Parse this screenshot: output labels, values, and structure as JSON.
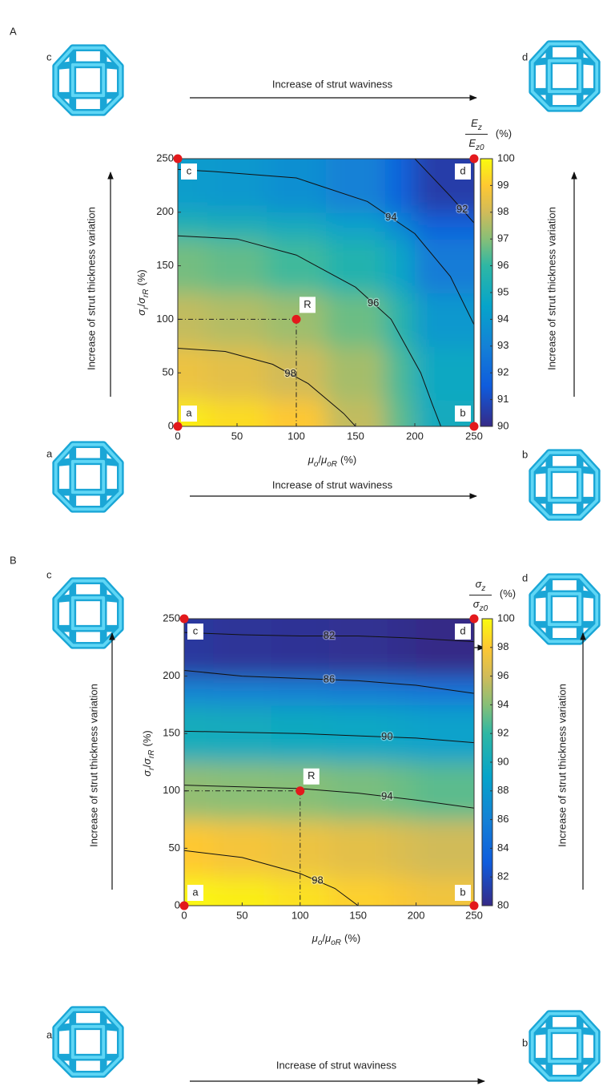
{
  "chart_data": [
    {
      "type": "contour",
      "panel_label": "A",
      "colormap": "parula",
      "lattice_labels": [
        "c",
        "d",
        "a",
        "b"
      ],
      "arrow_texts": [
        "Increase of strut waviness",
        "Increase of strut waviness",
        "Increase of strut thickness variation",
        "Increase of strut thickness variation"
      ],
      "xlabel": {
        "num": "μ",
        "num_sub": "o",
        "sep": "/",
        "den": "μ",
        "den_sub": "oR",
        "unit": "(%)"
      },
      "ylabel": {
        "num": "σ",
        "num_sub": "r",
        "sep": "/",
        "den": "σ",
        "den_sub": "rR",
        "unit": "(%)"
      },
      "colorbar_label": {
        "num": "E",
        "num_sub": "z",
        "den": "E",
        "den_sub": "z0",
        "unit": "(%)"
      },
      "xlim": [
        0,
        250
      ],
      "ylim": [
        0,
        250
      ],
      "xticks": [
        0,
        50,
        100,
        150,
        200,
        250
      ],
      "yticks": [
        0,
        50,
        100,
        150,
        200,
        250
      ],
      "clim": [
        90,
        100
      ],
      "cticks": [
        90,
        91,
        92,
        93,
        94,
        95,
        96,
        97,
        98,
        99,
        100
      ],
      "grid_x": [
        0,
        50,
        100,
        150,
        200,
        250
      ],
      "grid_y": [
        0,
        50,
        100,
        150,
        200,
        250
      ],
      "z": [
        [
          99.7,
          99.4,
          99.0,
          97.8,
          96.5,
          95.0
        ],
        [
          98.6,
          98.4,
          98.0,
          97.4,
          96.3,
          94.8
        ],
        [
          97.8,
          97.6,
          97.3,
          96.7,
          95.7,
          94.0
        ],
        [
          96.8,
          96.6,
          96.2,
          95.6,
          94.6,
          92.8
        ],
        [
          95.5,
          95.3,
          95.0,
          94.4,
          93.3,
          91.8
        ],
        [
          94.2,
          94.0,
          93.6,
          93.0,
          91.8,
          90.6
        ]
      ],
      "contours": [
        {
          "level": 98,
          "x": [
            0,
            40,
            80,
            110,
            140,
            150
          ],
          "y": [
            73,
            70,
            58,
            40,
            12,
            0
          ]
        },
        {
          "level": 96,
          "x": [
            0,
            50,
            100,
            150,
            180,
            205,
            215,
            222
          ],
          "y": [
            178,
            175,
            160,
            130,
            100,
            50,
            20,
            0
          ]
        },
        {
          "level": 94,
          "x": [
            0,
            30,
            100,
            160,
            200,
            230,
            250
          ],
          "y": [
            240,
            238,
            232,
            210,
            180,
            140,
            95
          ]
        },
        {
          "level": 92,
          "x": [
            200,
            230,
            250
          ],
          "y": [
            250,
            215,
            190
          ]
        }
      ],
      "points": {
        "labels": [
          "a",
          "b",
          "c",
          "d",
          "R"
        ],
        "x": [
          0,
          250,
          0,
          250,
          100
        ],
        "y": [
          0,
          0,
          250,
          250,
          100
        ]
      }
    },
    {
      "type": "contour",
      "panel_label": "B",
      "colormap": "parula",
      "lattice_labels": [
        "c",
        "d",
        "a",
        "b"
      ],
      "arrow_texts": [
        "Increase of strut waviness",
        "Increase of strut waviness",
        "Increase of strut thickness variation",
        "Increase of strut thickness variation"
      ],
      "xlabel": {
        "num": "μ",
        "num_sub": "o",
        "sep": "/",
        "den": "μ",
        "den_sub": "oR",
        "unit": "(%)"
      },
      "ylabel": {
        "num": "σ",
        "num_sub": "r",
        "sep": "/",
        "den": "σ",
        "den_sub": "rR",
        "unit": "(%)"
      },
      "colorbar_label": {
        "num": "σ",
        "num_sub": "z",
        "den": "σ",
        "den_sub": "z0",
        "unit": "(%)"
      },
      "xlim": [
        0,
        250
      ],
      "ylim": [
        0,
        250
      ],
      "xticks": [
        0,
        50,
        100,
        150,
        200,
        250
      ],
      "yticks": [
        0,
        50,
        100,
        150,
        200,
        250
      ],
      "clim": [
        80,
        100
      ],
      "cticks": [
        80,
        82,
        84,
        86,
        88,
        90,
        92,
        94,
        96,
        98,
        100
      ],
      "grid_x": [
        0,
        50,
        100,
        150,
        200,
        250
      ],
      "grid_y": [
        0,
        50,
        100,
        150,
        200,
        250
      ],
      "z": [
        [
          99.8,
          99.5,
          99.0,
          98.3,
          97.8,
          97.4
        ],
        [
          98.0,
          97.6,
          97.2,
          96.8,
          96.4,
          96.0
        ],
        [
          94.3,
          94.1,
          94.0,
          93.7,
          93.4,
          93.0
        ],
        [
          90.2,
          90.0,
          89.8,
          89.5,
          89.2,
          88.8
        ],
        [
          86.3,
          86.1,
          85.9,
          85.6,
          85.3,
          84.9
        ],
        [
          80.8,
          80.6,
          80.5,
          80.4,
          80.2,
          80.0
        ]
      ],
      "contours": [
        {
          "level": 98,
          "x": [
            0,
            50,
            100,
            130,
            150
          ],
          "y": [
            48,
            42,
            28,
            15,
            0
          ]
        },
        {
          "level": 94,
          "x": [
            0,
            100,
            150,
            200,
            250
          ],
          "y": [
            105,
            102,
            98,
            92,
            85
          ]
        },
        {
          "level": 90,
          "x": [
            0,
            100,
            150,
            200,
            250
          ],
          "y": [
            152,
            150,
            148,
            146,
            142
          ]
        },
        {
          "level": 86,
          "x": [
            0,
            50,
            100,
            150,
            200,
            250
          ],
          "y": [
            205,
            200,
            198,
            196,
            192,
            185
          ]
        },
        {
          "level": 82,
          "x": [
            0,
            50,
            100,
            150,
            200,
            250
          ],
          "y": [
            238,
            236,
            235,
            235,
            233,
            230
          ]
        }
      ],
      "points": {
        "labels": [
          "a",
          "b",
          "c",
          "d",
          "R"
        ],
        "x": [
          0,
          250,
          0,
          250,
          100
        ],
        "y": [
          0,
          0,
          250,
          250,
          100
        ]
      }
    }
  ]
}
